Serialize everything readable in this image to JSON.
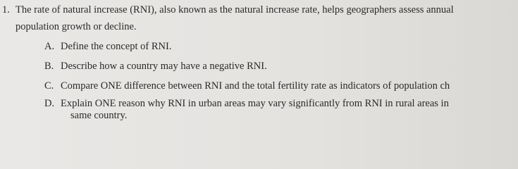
{
  "question": {
    "number": "1.",
    "stem": [
      "The rate of natural increase (RNI), also known as the natural increase rate, helps geographers assess annual",
      "population growth or decline."
    ],
    "items": [
      {
        "letter": "A.",
        "lines": [
          "Define the concept of RNI."
        ]
      },
      {
        "letter": "B.",
        "lines": [
          "Describe how a country may have a negative RNI."
        ]
      },
      {
        "letter": "C.",
        "lines": [
          "Compare ONE difference between RNI and the total fertility rate as indicators of population ch"
        ]
      },
      {
        "letter": "D.",
        "lines": [
          "Explain ONE reason why RNI in urban areas may vary significantly from RNI in rural areas in",
          "same country."
        ]
      }
    ]
  }
}
